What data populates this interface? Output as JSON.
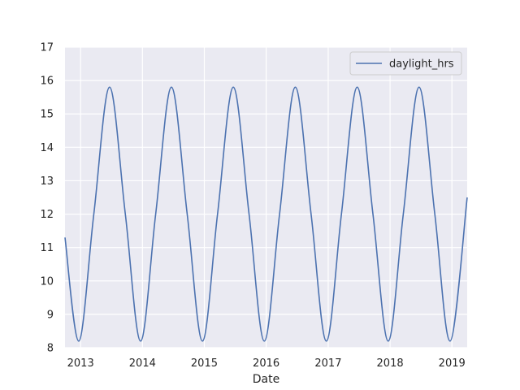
{
  "chart_data": {
    "type": "line",
    "title": "",
    "xlabel": "Date",
    "ylabel": "",
    "x_axis_kind": "date",
    "xlim": [
      "2012-10-01",
      "2019-04-01"
    ],
    "ylim": [
      8,
      17
    ],
    "x_ticks": [
      {
        "value": "2013-01-01",
        "label": "2013"
      },
      {
        "value": "2014-01-01",
        "label": "2014"
      },
      {
        "value": "2015-01-01",
        "label": "2015"
      },
      {
        "value": "2016-01-01",
        "label": "2016"
      },
      {
        "value": "2017-01-01",
        "label": "2017"
      },
      {
        "value": "2018-01-01",
        "label": "2018"
      },
      {
        "value": "2019-01-01",
        "label": "2019"
      }
    ],
    "y_ticks": [
      8,
      9,
      10,
      11,
      12,
      13,
      14,
      15,
      16,
      17
    ],
    "grid": true,
    "legend": {
      "position": "top-right",
      "entries": [
        "daylight_hrs"
      ]
    },
    "series": [
      {
        "name": "daylight_hrs",
        "color": "#4c72b0",
        "points": [
          {
            "x": "2012-10-01",
            "y": 11.3
          },
          {
            "x": "2012-12-21",
            "y": 8.2
          },
          {
            "x": "2013-03-20",
            "y": 12.0
          },
          {
            "x": "2013-06-21",
            "y": 15.8
          },
          {
            "x": "2013-09-22",
            "y": 12.0
          },
          {
            "x": "2013-12-21",
            "y": 8.2
          },
          {
            "x": "2014-03-20",
            "y": 12.0
          },
          {
            "x": "2014-06-21",
            "y": 15.8
          },
          {
            "x": "2014-09-22",
            "y": 12.0
          },
          {
            "x": "2014-12-21",
            "y": 8.2
          },
          {
            "x": "2015-03-20",
            "y": 12.0
          },
          {
            "x": "2015-06-21",
            "y": 15.8
          },
          {
            "x": "2015-09-22",
            "y": 12.0
          },
          {
            "x": "2015-12-21",
            "y": 8.2
          },
          {
            "x": "2016-03-20",
            "y": 12.0
          },
          {
            "x": "2016-06-21",
            "y": 15.8
          },
          {
            "x": "2016-09-22",
            "y": 12.0
          },
          {
            "x": "2016-12-21",
            "y": 8.2
          },
          {
            "x": "2017-03-20",
            "y": 12.0
          },
          {
            "x": "2017-06-21",
            "y": 15.8
          },
          {
            "x": "2017-09-22",
            "y": 12.0
          },
          {
            "x": "2017-12-21",
            "y": 8.2
          },
          {
            "x": "2018-03-20",
            "y": 12.0
          },
          {
            "x": "2018-06-21",
            "y": 15.8
          },
          {
            "x": "2018-09-22",
            "y": 12.0
          },
          {
            "x": "2018-12-21",
            "y": 8.2
          },
          {
            "x": "2019-04-01",
            "y": 12.5
          }
        ]
      }
    ]
  },
  "colors": {
    "plot_background": "#eaeaf2",
    "grid": "#ffffff",
    "line": "#4c72b0"
  }
}
